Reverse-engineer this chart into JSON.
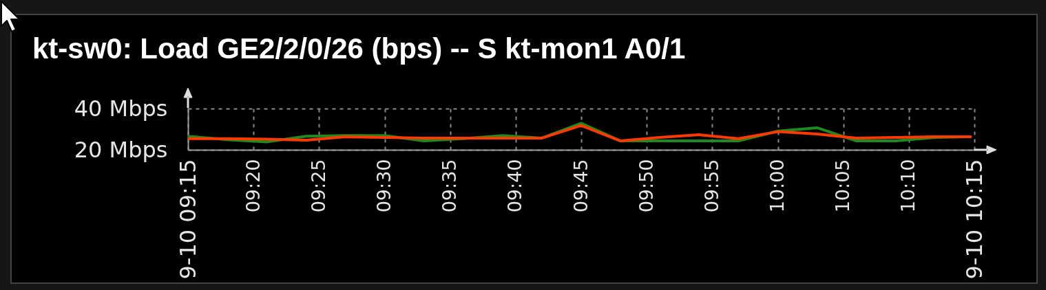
{
  "chart_data": {
    "type": "line",
    "title": "kt-sw0: Load GE2/2/0/26 (bps) -- S kt-mon1 A0/1",
    "x": [
      9.25,
      9.3,
      9.35,
      9.4,
      9.45,
      9.5,
      9.55,
      9.6,
      9.65,
      9.7,
      9.75,
      9.8,
      9.85,
      9.9,
      9.95,
      10,
      10.05,
      10.1,
      10.15,
      10.2,
      10.245
    ],
    "series": [
      {
        "color": "#1f8a1f",
        "values": [
          26.6,
          24.9,
          23.8,
          26.6,
          26.9,
          26.9,
          24.3,
          25.4,
          26.9,
          25.7,
          32.9,
          24.3,
          24.3,
          24.3,
          24.3,
          29.1,
          30.7,
          24.3,
          24.3,
          26,
          26.3
        ]
      },
      {
        "color": "#ff3a00",
        "values": [
          25.4,
          25.4,
          25.2,
          24.7,
          26.3,
          26,
          25.7,
          25.7,
          25.7,
          25.7,
          31.8,
          24.3,
          26,
          27.3,
          25.4,
          28.8,
          27.7,
          25.7,
          26,
          26.3,
          26.3
        ]
      }
    ],
    "xlim": [
      9.25,
      10.25
    ],
    "ylim": [
      20,
      40
    ],
    "xticks": [
      {
        "value": 9.25,
        "label": "9-10 09:15"
      },
      {
        "value": 9.3333,
        "label": "09:20"
      },
      {
        "value": 9.4167,
        "label": "09:25"
      },
      {
        "value": 9.5,
        "label": "09:30"
      },
      {
        "value": 9.5833,
        "label": "09:35"
      },
      {
        "value": 9.6667,
        "label": "09:40"
      },
      {
        "value": 9.75,
        "label": "09:45"
      },
      {
        "value": 9.8333,
        "label": "09:50"
      },
      {
        "value": 9.9167,
        "label": "09:55"
      },
      {
        "value": 10,
        "label": "10:00"
      },
      {
        "value": 10.0833,
        "label": "10:05"
      },
      {
        "value": 10.1667,
        "label": "10:10"
      },
      {
        "value": 10.25,
        "label": "9-10 10:15"
      }
    ],
    "yticks": [
      {
        "value": 20,
        "label": "20 Mbps"
      },
      {
        "value": 40,
        "label": "40 Mbps"
      }
    ],
    "grid": true
  }
}
